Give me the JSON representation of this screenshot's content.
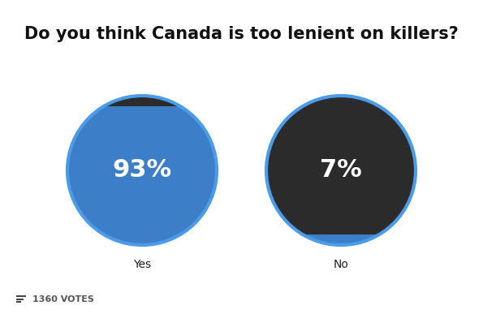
{
  "chart_data": {
    "type": "pie",
    "title": "Do you think Canada is too lenient on killers?",
    "categories": [
      "Yes",
      "No"
    ],
    "values": [
      93,
      7
    ],
    "value_labels": [
      "93%",
      "7%"
    ],
    "data_labels": true,
    "color": "#3d7ec8",
    "footer": "1360 VOTES"
  }
}
